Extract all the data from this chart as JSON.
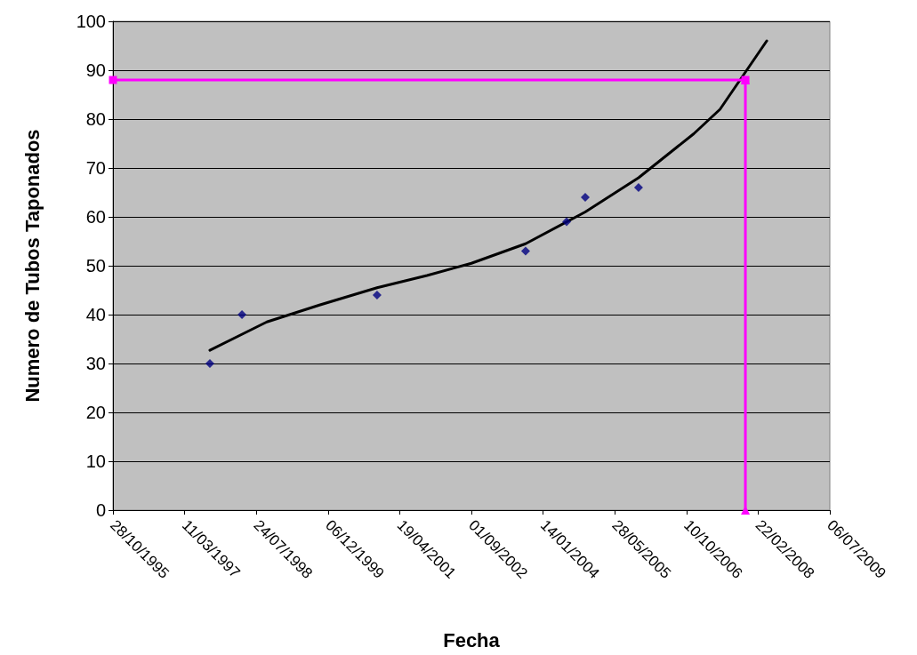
{
  "chart_data": {
    "type": "scatter",
    "xlabel": "Fecha",
    "ylabel": "Numero de Tubos Taponados",
    "xlim": [
      "1995-10-28",
      "2009-07-06"
    ],
    "xticks": [
      {
        "value": "1995-10-28",
        "label": "28/10/1995"
      },
      {
        "value": "1997-03-11",
        "label": "11/03/1997"
      },
      {
        "value": "1998-07-24",
        "label": "24/07/1998"
      },
      {
        "value": "1999-12-06",
        "label": "06/12/1999"
      },
      {
        "value": "2001-04-19",
        "label": "19/04/2001"
      },
      {
        "value": "2002-09-01",
        "label": "01/09/2002"
      },
      {
        "value": "2004-01-14",
        "label": "14/01/2004"
      },
      {
        "value": "2005-05-28",
        "label": "28/05/2005"
      },
      {
        "value": "2006-10-10",
        "label": "10/10/2006"
      },
      {
        "value": "2008-02-22",
        "label": "22/02/2008"
      },
      {
        "value": "2009-07-06",
        "label": "06/07/2009"
      }
    ],
    "ylim": [
      0,
      100
    ],
    "yticks": [
      0,
      10,
      20,
      30,
      40,
      50,
      60,
      70,
      80,
      90,
      100
    ],
    "grid": "y",
    "series": [
      {
        "marker": "diamond",
        "color": "#000080",
        "x": [
          "1997-09-03",
          "1998-04-15",
          "2000-11-12",
          "2003-09-14",
          "2004-06-26",
          "2004-11-03",
          "2005-11-10"
        ],
        "values": [
          30,
          40,
          44,
          53,
          59,
          64,
          66
        ]
      },
      {
        "type": "line",
        "marker": "none",
        "color": "#000000",
        "x": [
          "1997-09-03",
          "1998-10-05",
          "1999-10-12",
          "2000-11-12",
          "2001-10-26",
          "2002-09-01",
          "2003-09-14",
          "2004-11-03",
          "2005-11-10",
          "2006-11-30",
          "2007-06-01",
          "2008-04-22"
        ],
        "values": [
          32.7,
          38.5,
          42,
          45.5,
          48,
          50.5,
          54.5,
          61,
          68,
          77,
          82,
          96
        ]
      },
      {
        "type": "line",
        "marker": "square",
        "color": "#ff00ff",
        "x": [
          "1995-10-28",
          "2007-11-25"
        ],
        "values": [
          88,
          88
        ]
      },
      {
        "type": "line",
        "marker": "triangle",
        "color": "#ff00ff",
        "x": [
          "2007-11-25",
          "2007-11-25"
        ],
        "values": [
          88,
          0
        ]
      }
    ]
  }
}
